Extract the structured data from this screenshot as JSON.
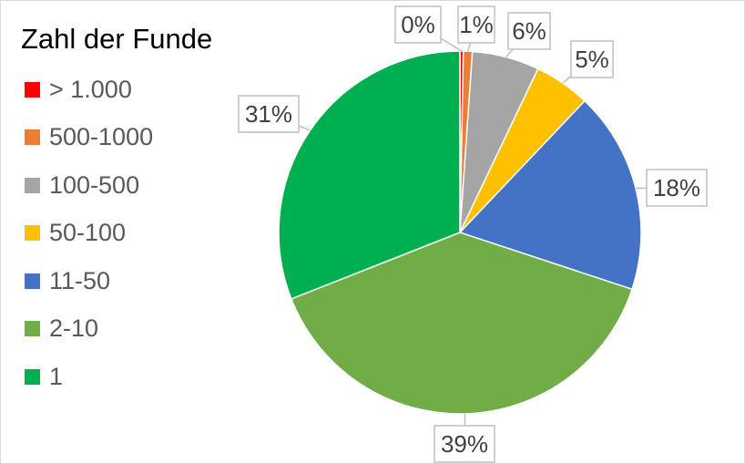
{
  "chart_data": {
    "type": "pie",
    "legend_title": "Zahl der Funde",
    "legend_position": "left",
    "categories": [
      "> 1.000",
      "500-1000",
      "100-500",
      "50-100",
      "11-50",
      "2-10",
      "1"
    ],
    "values": [
      0.3,
      0.8,
      6,
      5,
      18,
      39,
      31
    ],
    "data_labels": [
      "0%",
      "1%",
      "6%",
      "5%",
      "18%",
      "39%",
      "31%"
    ],
    "colors": [
      "#ff0000",
      "#ed7d31",
      "#a5a5a5",
      "#ffc000",
      "#4472c4",
      "#70ad47",
      "#00b050"
    ]
  }
}
